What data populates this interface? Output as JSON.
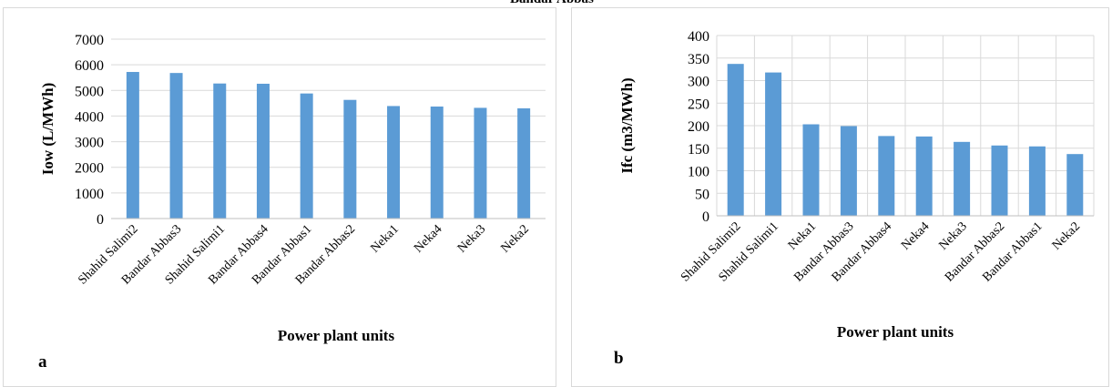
{
  "top_text": "Bandar Abbas",
  "chart_data": [
    {
      "type": "bar",
      "panel_label": "a",
      "categories": [
        "Shahid Salimi2",
        "Bandar Abbas3",
        "Shahid Salimi1",
        "Bandar Abbas4",
        "Bandar Abbas1",
        "Bandar Abbas2",
        "Neka1",
        "Neka4",
        "Neka3",
        "Neka2"
      ],
      "values": [
        5720,
        5680,
        5270,
        5260,
        4880,
        4630,
        4390,
        4370,
        4320,
        4300
      ],
      "xlabel": "Power plant units",
      "ylabel": "Iow (L/MWh)",
      "ylim": [
        0,
        7000
      ],
      "yticks": [
        0,
        1000,
        2000,
        3000,
        4000,
        5000,
        6000,
        7000
      ],
      "grid": "horizontal",
      "bar_color": "#5b9bd5"
    },
    {
      "type": "bar",
      "panel_label": "b",
      "categories": [
        "Shahid Salimi2",
        "Shahid Salimi1",
        "Neka1",
        "Bandar Abbas3",
        "Bandar Abbas4",
        "Neka4",
        "Neka3",
        "Bandar Abbas2",
        "Bandar Abbas1",
        "Neka2"
      ],
      "values": [
        337,
        318,
        203,
        199,
        177,
        176,
        164,
        156,
        154,
        137
      ],
      "xlabel": "Power plant units",
      "ylabel": "Ifc (m3/MWh)",
      "ylim": [
        0,
        400
      ],
      "yticks": [
        0,
        50,
        100,
        150,
        200,
        250,
        300,
        350,
        400
      ],
      "grid": "both",
      "bar_color": "#5b9bd5"
    }
  ]
}
